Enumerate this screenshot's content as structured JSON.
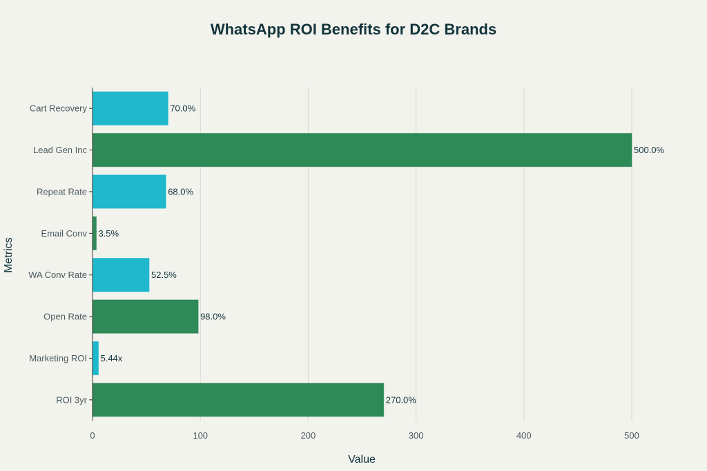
{
  "chart_data": {
    "type": "bar",
    "orientation": "horizontal",
    "title": "WhatsApp ROI Benefits for D2C Brands",
    "xlabel": "Value",
    "ylabel": "Metrics",
    "xlim": [
      0,
      500
    ],
    "xticks": [
      0,
      100,
      200,
      300,
      400,
      500
    ],
    "grid": true,
    "categories": [
      "Cart Recovery",
      "Lead Gen Inc",
      "Repeat Rate",
      "Email Conv",
      "WA Conv Rate",
      "Open Rate",
      "Marketing ROI",
      "ROI 3yr"
    ],
    "values": [
      70,
      500,
      68,
      3.5,
      52.5,
      98,
      5.44,
      270
    ],
    "data_labels": [
      "70.0%",
      "500.0%",
      "68.0%",
      "3.5%",
      "52.5%",
      "98.0%",
      "5.44x",
      "270.0%"
    ],
    "colors": [
      "#1fb8cd",
      "#2e8b57",
      "#1fb8cd",
      "#2e8b57",
      "#1fb8cd",
      "#2e8b57",
      "#1fb8cd",
      "#2e8b57"
    ]
  }
}
